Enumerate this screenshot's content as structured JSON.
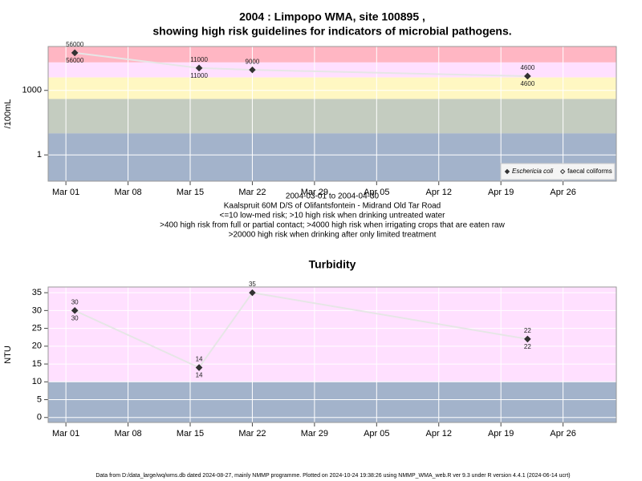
{
  "chart_data": [
    {
      "type": "line",
      "title": "2004 : Limpopo WMA, site 100895 ,",
      "subtitle": "showing high risk guidelines for indicators of microbial pathogens.",
      "notes": [
        "2004-03-01 to 2004-04-30",
        "Kaalspruit 60M D/S of Olifantsfontein - Midrand Old Tar Road",
        "<=10 low-med risk; >10 high risk when drinking untreated water",
        ">400 high risk from full or partial contact; >4000 high risk when irrigating crops that are eaten raw",
        ">20000 high risk when drinking after only limited treatment"
      ],
      "ylabel": "/100mL",
      "log_scale": true,
      "x": [
        "2004-03-02",
        "2004-03-16",
        "2004-03-22",
        "2004-04-22"
      ],
      "xlim": [
        "2004-02-28",
        "2004-05-02"
      ],
      "xticks": [
        {
          "value": "2004-03-01",
          "label": "Mar 01"
        },
        {
          "value": "2004-03-08",
          "label": "Mar 08"
        },
        {
          "value": "2004-03-15",
          "label": "Mar 15"
        },
        {
          "value": "2004-03-22",
          "label": "Mar 22"
        },
        {
          "value": "2004-03-29",
          "label": "Mar 29"
        },
        {
          "value": "2004-04-05",
          "label": "Apr 05"
        },
        {
          "value": "2004-04-12",
          "label": "Apr 12"
        },
        {
          "value": "2004-04-19",
          "label": "Apr 19"
        },
        {
          "value": "2004-04-26",
          "label": "Apr 26"
        }
      ],
      "ylim": [
        0.06,
        110000
      ],
      "yticks": [
        1,
        1000
      ],
      "grid": true,
      "bands": [
        {
          "from": 20000,
          "to": 110000,
          "color": "#ffb6c3"
        },
        {
          "from": 4000,
          "to": 20000,
          "color": "#ffe0ff"
        },
        {
          "from": 400,
          "to": 4000,
          "color": "#fff7c2"
        },
        {
          "from": 10,
          "to": 400,
          "color": "#c4ccc0"
        },
        {
          "from": 0.06,
          "to": 10,
          "color": "#a3b3cb"
        }
      ],
      "legend": "lower right",
      "series": [
        {
          "name": "Eschericia coli",
          "color": "#333333",
          "marker": "filled",
          "line_color": "#e6e6e6",
          "values": [
            56000,
            11000,
            9000,
            4600
          ]
        },
        {
          "name": "faecal coliforms",
          "color": "#333333",
          "marker": "open",
          "values": [
            56000,
            11000,
            null,
            4600
          ]
        }
      ]
    },
    {
      "type": "line",
      "title": "Turbidity",
      "ylabel": "NTU",
      "log_scale": false,
      "x": [
        "2004-03-02",
        "2004-03-16",
        "2004-03-22",
        "2004-04-22"
      ],
      "xlim": [
        "2004-02-28",
        "2004-05-02"
      ],
      "xticks": [
        {
          "value": "2004-03-01",
          "label": "Mar 01"
        },
        {
          "value": "2004-03-08",
          "label": "Mar 08"
        },
        {
          "value": "2004-03-15",
          "label": "Mar 15"
        },
        {
          "value": "2004-03-22",
          "label": "Mar 22"
        },
        {
          "value": "2004-03-29",
          "label": "Mar 29"
        },
        {
          "value": "2004-04-05",
          "label": "Apr 05"
        },
        {
          "value": "2004-04-12",
          "label": "Apr 12"
        },
        {
          "value": "2004-04-19",
          "label": "Apr 19"
        },
        {
          "value": "2004-04-26",
          "label": "Apr 26"
        }
      ],
      "ylim": [
        -1.4,
        36.6
      ],
      "yticks": [
        0,
        5,
        10,
        15,
        20,
        25,
        30,
        35
      ],
      "grid": true,
      "bands": [
        {
          "from": 10,
          "to": 36.6,
          "color": "#ffe0ff"
        },
        {
          "from": -1.4,
          "to": 10,
          "color": "#a3b3cb"
        }
      ],
      "series": [
        {
          "color": "#333333",
          "marker": "filled",
          "line_color": "#e6e6e6",
          "values": [
            30,
            14,
            35,
            22
          ]
        },
        {
          "color": "#333333",
          "marker": "filled",
          "values": [
            30,
            14,
            null,
            22
          ]
        }
      ]
    }
  ],
  "footer": "Data from D:/data_large/wq/wms.db dated 2024-08-27, mainly NMMP programme. Plotted on 2024-10-24 19:38:26 using NMMP_WMA_web.R ver 9.3 under R version 4.4.1 (2024-06-14 ucrt)"
}
